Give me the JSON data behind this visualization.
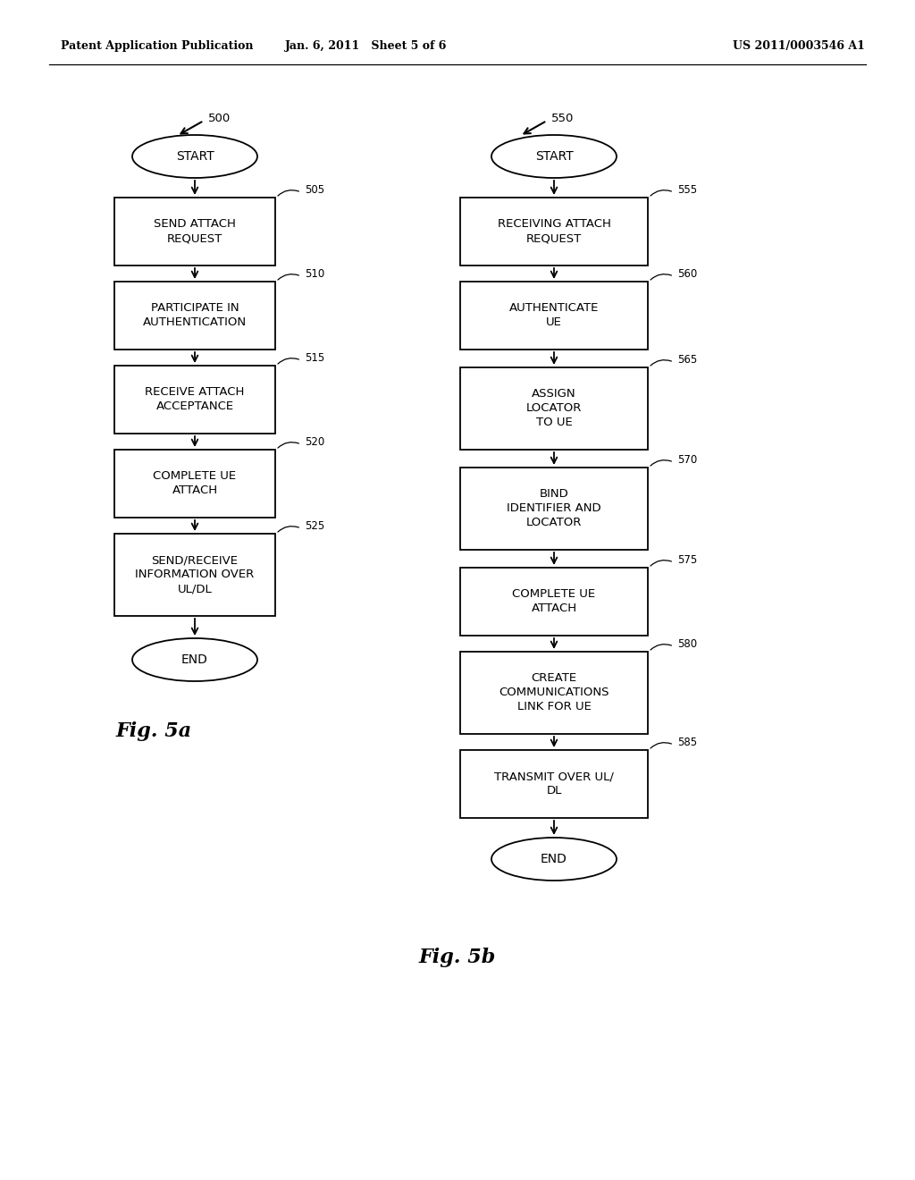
{
  "header_left": "Patent Application Publication",
  "header_mid": "Jan. 6, 2011   Sheet 5 of 6",
  "header_right": "US 2011/0003546 A1",
  "fig_label_a": "Fig. 5a",
  "fig_label_b": "Fig. 5b",
  "bg_color": "#ffffff"
}
